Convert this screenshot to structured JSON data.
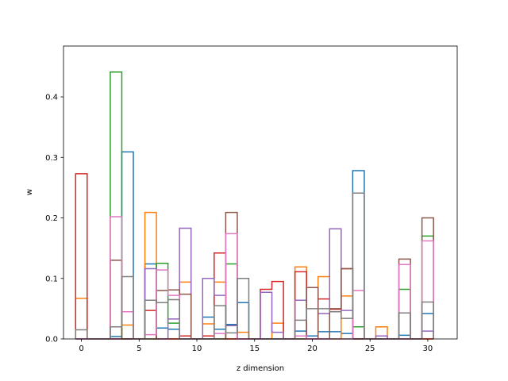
{
  "chart_data": {
    "type": "bar",
    "title": "",
    "xlabel": "z dimension",
    "ylabel": "w",
    "xlim": [
      -1.55,
      32.55
    ],
    "ylim": [
      0,
      0.484
    ],
    "xticks": [
      0,
      5,
      10,
      15,
      20,
      25,
      30
    ],
    "yticks": [
      0.0,
      0.1,
      0.2,
      0.3,
      0.4
    ],
    "ytick_labels": [
      "0.0",
      "0.1",
      "0.2",
      "0.3",
      "0.4"
    ],
    "legend": false,
    "grid": false,
    "histtype": "step",
    "series": [
      {
        "color": "#1f77b4",
        "values": [
          0,
          0,
          0,
          0.004,
          0.309,
          0,
          0.124,
          0.018,
          0.016,
          0,
          0,
          0.036,
          0.016,
          0.024,
          0.06,
          0,
          0,
          0,
          0,
          0.013,
          0.005,
          0.012,
          0.012,
          0.009,
          0.278,
          0,
          0,
          0,
          0.006,
          0,
          0.042
        ]
      },
      {
        "color": "#ff7f0e",
        "values": [
          0.067,
          0,
          0,
          0,
          0.023,
          0,
          0.209,
          0,
          0,
          0.094,
          0,
          0.025,
          0.094,
          0,
          0.011,
          0,
          0,
          0.026,
          0,
          0.119,
          0,
          0.103,
          0,
          0.071,
          0,
          0,
          0.02,
          0,
          0,
          0,
          0
        ]
      },
      {
        "color": "#2ca02c",
        "values": [
          0,
          0,
          0,
          0.441,
          0,
          0,
          0,
          0.125,
          0.026,
          0,
          0,
          0,
          0,
          0.124,
          0,
          0,
          0,
          0,
          0,
          0,
          0,
          0,
          0,
          0,
          0.02,
          0,
          0,
          0,
          0.082,
          0,
          0.17
        ]
      },
      {
        "color": "#d62728",
        "values": [
          0.273,
          0,
          0,
          0,
          0,
          0,
          0.047,
          0,
          0,
          0.005,
          0,
          0.005,
          0.142,
          0,
          0,
          0,
          0.082,
          0.095,
          0,
          0.111,
          0,
          0.066,
          0.049,
          0.116,
          0,
          0,
          0,
          0,
          0,
          0,
          0
        ]
      },
      {
        "color": "#9467bd",
        "values": [
          0,
          0,
          0,
          0,
          0,
          0,
          0.116,
          0,
          0.033,
          0.183,
          0,
          0.1,
          0.072,
          0.022,
          0,
          0,
          0.077,
          0.011,
          0,
          0.064,
          0,
          0.042,
          0.182,
          0.047,
          0,
          0,
          0.005,
          0,
          0,
          0,
          0.013
        ]
      },
      {
        "color": "#8c564b",
        "values": [
          0,
          0,
          0,
          0.13,
          0,
          0,
          0,
          0.08,
          0.081,
          0.074,
          0,
          0,
          0,
          0.209,
          0,
          0,
          0,
          0,
          0,
          0,
          0.085,
          0,
          0.05,
          0.116,
          0,
          0,
          0,
          0,
          0.132,
          0,
          0.2
        ]
      },
      {
        "color": "#e377c2",
        "values": [
          0,
          0,
          0,
          0.202,
          0.045,
          0,
          0.007,
          0.114,
          0.072,
          0,
          0,
          0,
          0.009,
          0.174,
          0,
          0,
          0,
          0,
          0,
          0.005,
          0,
          0,
          0,
          0,
          0.08,
          0,
          0,
          0,
          0.123,
          0,
          0.162
        ]
      },
      {
        "color": "#7f7f7f",
        "values": [
          0.015,
          0,
          0,
          0.02,
          0.103,
          0,
          0.064,
          0.06,
          0.065,
          0,
          0,
          0,
          0.055,
          0.01,
          0.1,
          0,
          0,
          0,
          0,
          0.031,
          0.05,
          0.05,
          0.045,
          0.034,
          0.241,
          0,
          0,
          0,
          0.043,
          0,
          0.061
        ]
      }
    ]
  }
}
